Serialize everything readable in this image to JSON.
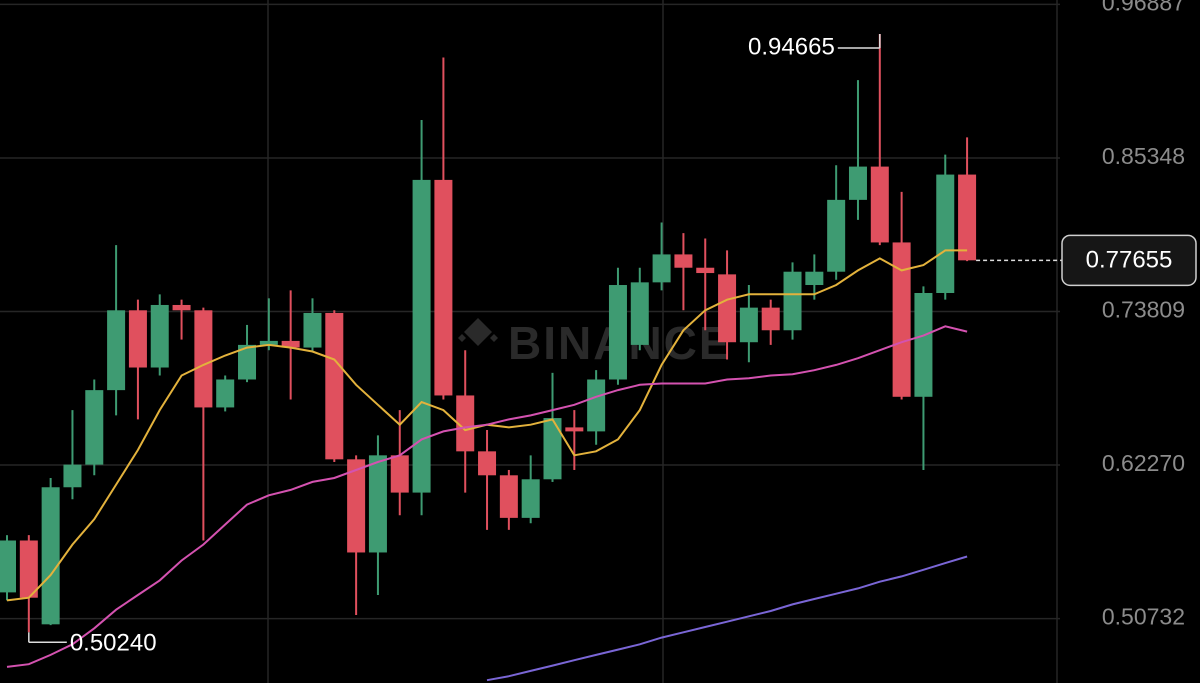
{
  "chart_data": {
    "type": "candlestick",
    "watermark": "BINANCE",
    "ylim": [
      0.4589,
      0.9722
    ],
    "yticks": [
      0.50732,
      {
        "value": 0.6227,
        "label": "0.62270"
      },
      0.73809,
      0.85348,
      0.96887
    ],
    "grid": true,
    "up_color": "#3e9b72",
    "down_color": "#e0505e",
    "high_label": "0.94665",
    "low_label": "0.50240",
    "candles": {
      "open": [
        0.527,
        0.566,
        0.503,
        0.606,
        0.623,
        0.679,
        0.739,
        0.696,
        0.743,
        0.739,
        0.666,
        0.687,
        0.713,
        0.716,
        0.711,
        0.737,
        0.627,
        0.557,
        0.63,
        0.602,
        0.837,
        0.675,
        0.633,
        0.615,
        0.583,
        0.612,
        0.651,
        0.648,
        0.687,
        0.713,
        0.76,
        0.781,
        0.771,
        0.766,
        0.715,
        0.741,
        0.724,
        0.758,
        0.768,
        0.822,
        0.847,
        0.79,
        0.674,
        0.752,
        0.841
      ],
      "high": [
        0.57,
        0.57,
        0.613,
        0.664,
        0.687,
        0.788,
        0.747,
        0.751,
        0.747,
        0.741,
        0.69,
        0.728,
        0.748,
        0.754,
        0.748,
        0.739,
        0.63,
        0.645,
        0.664,
        0.882,
        0.929,
        0.709,
        0.649,
        0.619,
        0.63,
        0.692,
        0.664,
        0.694,
        0.771,
        0.771,
        0.805,
        0.797,
        0.793,
        0.784,
        0.758,
        0.747,
        0.775,
        0.781,
        0.848,
        0.912,
        0.94665,
        0.828,
        0.757,
        0.856,
        0.869
      ],
      "low": [
        0.521,
        0.497,
        0.5024,
        0.597,
        0.615,
        0.66,
        0.657,
        0.69,
        0.717,
        0.566,
        0.663,
        0.685,
        0.709,
        0.672,
        0.708,
        0.625,
        0.51,
        0.525,
        0.585,
        0.585,
        0.672,
        0.602,
        0.574,
        0.574,
        0.579,
        0.61,
        0.619,
        0.638,
        0.683,
        0.709,
        0.754,
        0.739,
        0.724,
        0.702,
        0.7,
        0.713,
        0.717,
        0.747,
        0.762,
        0.807,
        0.788,
        0.672,
        0.619,
        0.747,
        0.776
      ],
      "close": [
        0.566,
        0.523,
        0.606,
        0.623,
        0.679,
        0.739,
        0.696,
        0.743,
        0.739,
        0.666,
        0.687,
        0.713,
        0.716,
        0.711,
        0.737,
        0.627,
        0.557,
        0.63,
        0.602,
        0.837,
        0.675,
        0.633,
        0.615,
        0.583,
        0.612,
        0.658,
        0.648,
        0.687,
        0.758,
        0.76,
        0.781,
        0.771,
        0.767,
        0.715,
        0.741,
        0.724,
        0.768,
        0.768,
        0.822,
        0.847,
        0.79,
        0.674,
        0.752,
        0.841,
        0.77655
      ]
    },
    "lines": [
      {
        "color": "#e3b23c",
        "values": [
          0.521,
          0.523,
          0.54,
          0.563,
          0.582,
          0.608,
          0.634,
          0.664,
          0.69,
          0.698,
          0.705,
          0.711,
          0.713,
          0.711,
          0.708,
          0.702,
          0.683,
          0.668,
          0.653,
          0.67,
          0.664,
          0.649,
          0.653,
          0.651,
          0.653,
          0.657,
          0.63,
          0.633,
          0.642,
          0.664,
          0.698,
          0.724,
          0.739,
          0.747,
          0.751,
          0.751,
          0.751,
          0.751,
          0.758,
          0.769,
          0.778,
          0.769,
          0.773,
          0.784,
          0.784
        ]
      },
      {
        "color": "#d452b0",
        "values": [
          0.471,
          0.473,
          0.48,
          0.488,
          0.5,
          0.514,
          0.525,
          0.536,
          0.551,
          0.563,
          0.578,
          0.593,
          0.6,
          0.604,
          0.61,
          0.613,
          0.619,
          0.625,
          0.63,
          0.642,
          0.648,
          0.651,
          0.653,
          0.657,
          0.66,
          0.664,
          0.668,
          0.674,
          0.679,
          0.683,
          0.684,
          0.684,
          0.684,
          0.687,
          0.688,
          0.69,
          0.691,
          0.694,
          0.698,
          0.703,
          0.709,
          0.715,
          0.72,
          0.727,
          0.723
        ]
      },
      {
        "color": "#7a66d6",
        "values": [
          null,
          null,
          null,
          null,
          null,
          null,
          null,
          null,
          null,
          null,
          null,
          null,
          null,
          null,
          null,
          null,
          null,
          null,
          null,
          null,
          null,
          null,
          0.461,
          0.464,
          0.468,
          0.472,
          0.476,
          0.48,
          0.484,
          0.488,
          0.493,
          0.497,
          0.501,
          0.505,
          0.509,
          0.513,
          0.518,
          0.522,
          0.526,
          0.53,
          0.535,
          0.539,
          0.544,
          0.549,
          0.554
        ]
      }
    ]
  }
}
